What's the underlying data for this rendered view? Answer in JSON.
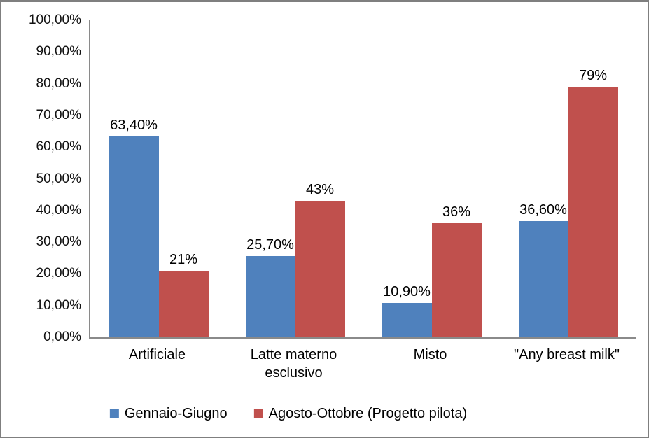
{
  "chart_data": {
    "type": "bar",
    "categories": [
      "Artificiale",
      "Latte materno esclusivo",
      "Misto",
      "\"Any breast milk\""
    ],
    "series": [
      {
        "name": "Gennaio-Giugno",
        "color": "#4F81BD",
        "values": [
          63.4,
          25.7,
          10.9,
          36.6
        ],
        "labels": [
          "63,40%",
          "25,70%",
          "10,90%",
          "36,60%"
        ]
      },
      {
        "name": "Agosto-Ottobre (Progetto pilota)",
        "color": "#C0504D",
        "values": [
          21,
          43,
          36,
          79
        ],
        "labels": [
          "21%",
          "43%",
          "36%",
          "79%"
        ]
      }
    ],
    "title": "",
    "xlabel": "",
    "ylabel": "",
    "ylim": [
      0,
      100
    ],
    "y_ticks": [
      "100,00%",
      "90,00%",
      "80,00%",
      "70,00%",
      "60,00%",
      "50,00%",
      "40,00%",
      "30,00%",
      "20,00%",
      "10,00%",
      "0,00%"
    ],
    "grid": false,
    "legend_position": "bottom",
    "axis_color": "#8a8a8a",
    "frame_color": "#7f7f7f",
    "text_color": "#000000"
  }
}
